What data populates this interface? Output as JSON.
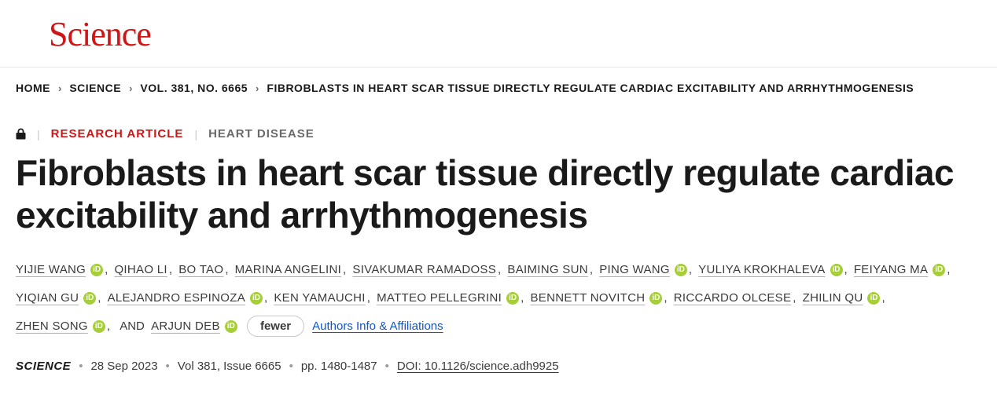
{
  "brand": {
    "logo": "Science"
  },
  "breadcrumb": [
    {
      "label": "HOME"
    },
    {
      "label": "SCIENCE"
    },
    {
      "label": "VOL. 381, NO. 6665"
    },
    {
      "label": "FIBROBLASTS IN HEART SCAR TISSUE DIRECTLY REGULATE CARDIAC EXCITABILITY AND ARRHYTHMOGENESIS"
    }
  ],
  "meta": {
    "article_type": "RESEARCH ARTICLE",
    "topic": "HEART DISEASE"
  },
  "title": "Fibroblasts in heart scar tissue directly regulate cardiac excitability and arrhythmogenesis",
  "authors": [
    {
      "name": "YIJIE WANG",
      "orcid": true
    },
    {
      "name": "QIHAO LI",
      "orcid": false
    },
    {
      "name": "BO TAO",
      "orcid": false
    },
    {
      "name": "MARINA ANGELINI",
      "orcid": false
    },
    {
      "name": "SIVAKUMAR RAMADOSS",
      "orcid": false
    },
    {
      "name": "BAIMING SUN",
      "orcid": false
    },
    {
      "name": "PING WANG",
      "orcid": true
    },
    {
      "name": "YULIYA KROKHALEVA",
      "orcid": true
    },
    {
      "name": "FEIYANG MA",
      "orcid": true
    },
    {
      "name": "YIQIAN GU",
      "orcid": true
    },
    {
      "name": "ALEJANDRO ESPINOZA",
      "orcid": true
    },
    {
      "name": "KEN YAMAUCHI",
      "orcid": false
    },
    {
      "name": "MATTEO PELLEGRINI",
      "orcid": true
    },
    {
      "name": "BENNETT NOVITCH",
      "orcid": true
    },
    {
      "name": "RICCARDO OLCESE",
      "orcid": false
    },
    {
      "name": "ZHILIN QU",
      "orcid": true
    },
    {
      "name": "ZHEN SONG",
      "orcid": true
    },
    {
      "name": "ARJUN DEB",
      "orcid": true
    }
  ],
  "authors_ui": {
    "fewer_label": "fewer",
    "affiliations_label": "Authors Info & Affiliations",
    "and_label": "AND"
  },
  "citation": {
    "journal": "SCIENCE",
    "date": "28 Sep 2023",
    "vol_issue": "Vol 381, Issue 6665",
    "pages": "pp. 1480-1487",
    "doi_label": "DOI: 10.1126/science.adh9925"
  },
  "colors": {
    "brand_red": "#cf1515",
    "orcid_green": "#a6ce39",
    "link_blue": "#1155cc"
  }
}
